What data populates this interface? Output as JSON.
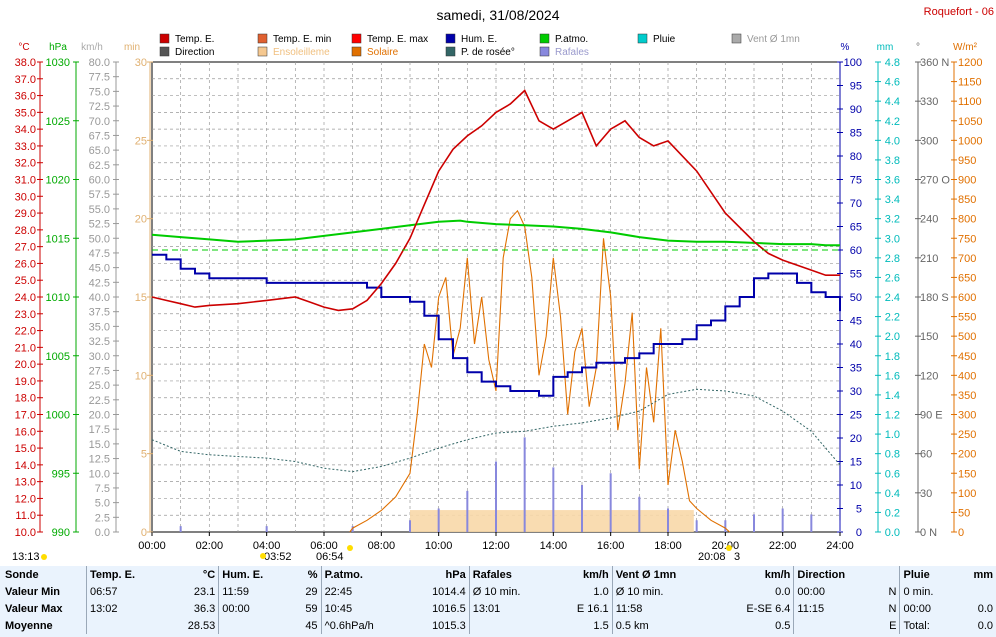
{
  "title": "samedi, 31/08/2024",
  "station": "Roquefort - 06",
  "legend": [
    {
      "label": "Temp. E.",
      "color": "#cc0000"
    },
    {
      "label": "Temp. E. min",
      "color": "#e06030"
    },
    {
      "label": "Temp. E. max",
      "color": "#ff0000"
    },
    {
      "label": "Hum. E.",
      "color": "#0000aa"
    },
    {
      "label": "P.atmo.",
      "color": "#00cc00"
    },
    {
      "label": "Pluie",
      "color": "#00cccc"
    },
    {
      "label": "Vent Ø 1mn",
      "color": "#aaaaaa"
    },
    {
      "label": "Direction",
      "color": "#555555"
    },
    {
      "label": "Ensoleilleme",
      "color": "#f5c890"
    },
    {
      "label": "Solaire",
      "color": "#e07000"
    },
    {
      "label": "P. de rosée°",
      "color": "#336666"
    },
    {
      "label": "Rafales",
      "color": "#8888dd"
    }
  ],
  "axis_units": {
    "temp": "°C",
    "pressure": "hPa",
    "wind": "km/h",
    "minutes": "min",
    "humidity": "%",
    "rain": "mm",
    "direction": "°",
    "solar": "W/m²"
  },
  "axes": {
    "temp": [
      "38.0",
      "37.0",
      "36.0",
      "35.0",
      "34.0",
      "33.0",
      "32.0",
      "31.0",
      "30.0",
      "29.0",
      "28.0",
      "27.0",
      "26.0",
      "25.0",
      "24.0",
      "23.0",
      "22.0",
      "21.0",
      "20.0",
      "19.0",
      "18.0",
      "17.0",
      "16.0",
      "15.0",
      "14.0",
      "13.0",
      "12.0",
      "11.0",
      "10.0"
    ],
    "pressure": [
      "1030",
      "1025",
      "1020",
      "1015",
      "1010",
      "1005",
      "1000",
      "995",
      "990"
    ],
    "wind": [
      "80.0",
      "77.5",
      "75.0",
      "72.5",
      "70.0",
      "67.5",
      "65.0",
      "62.5",
      "60.0",
      "57.5",
      "55.0",
      "52.5",
      "50.0",
      "47.5",
      "45.0",
      "42.5",
      "40.0",
      "37.5",
      "35.0",
      "32.5",
      "30.0",
      "27.5",
      "25.0",
      "22.5",
      "20.0",
      "17.5",
      "15.0",
      "12.5",
      "10.0",
      "7.5",
      "5.0",
      "2.5",
      "0.0"
    ],
    "minutes": [
      "30",
      "25",
      "20",
      "15",
      "10",
      "5",
      "0"
    ],
    "humidity": [
      "100",
      "95",
      "90",
      "85",
      "80",
      "75",
      "70",
      "65",
      "60",
      "55",
      "50",
      "45",
      "40",
      "35",
      "30",
      "25",
      "20",
      "15",
      "10",
      "5",
      "0"
    ],
    "rain": [
      "4.8",
      "4.6",
      "4.4",
      "4.2",
      "4.0",
      "3.8",
      "3.6",
      "3.4",
      "3.2",
      "3.0",
      "2.8",
      "2.6",
      "2.4",
      "2.2",
      "2.0",
      "1.8",
      "1.6",
      "1.4",
      "1.2",
      "1.0",
      "0.8",
      "0.6",
      "0.4",
      "0.2",
      "0.0"
    ],
    "direction": [
      "360 N",
      "330",
      "300",
      "270 O",
      "240",
      "210",
      "180 S",
      "150",
      "120",
      "90 E",
      "60",
      "30",
      "0 N"
    ],
    "solar": [
      "1200",
      "1150",
      "1100",
      "1050",
      "1000",
      "950",
      "900",
      "850",
      "800",
      "750",
      "700",
      "650",
      "600",
      "550",
      "500",
      "450",
      "400",
      "350",
      "300",
      "250",
      "200",
      "150",
      "100",
      "50",
      "0"
    ],
    "time": [
      "00:00",
      "02:00",
      "04:00",
      "06:00",
      "08:00",
      "10:00",
      "12:00",
      "14:00",
      "16:00",
      "18:00",
      "20:00",
      "22:00",
      "24:00"
    ]
  },
  "sun_markers": {
    "start": "13:13",
    "sunrise": "06:54",
    "moon": "03:52",
    "sunset": "20:08",
    "sunset_suffix": "3"
  },
  "chart_data": {
    "type": "line",
    "title": "samedi, 31/08/2024",
    "x_unit": "hour of day",
    "xlim": [
      0,
      24
    ],
    "series": [
      {
        "name": "Temp. E.",
        "unit": "°C",
        "ylim": [
          10,
          38
        ],
        "x": [
          0,
          0.5,
          1,
          1.5,
          2,
          3,
          4,
          5,
          5.5,
          6,
          6.5,
          7,
          7.5,
          8,
          8.5,
          9,
          9.5,
          10,
          10.5,
          11,
          11.5,
          12,
          12.5,
          13,
          13.5,
          14,
          14.5,
          15,
          15.5,
          16,
          16.5,
          17,
          17.5,
          18,
          19,
          20,
          21,
          21.5,
          22,
          22.5,
          23,
          23.5,
          24
        ],
        "y": [
          24,
          23.8,
          23.6,
          23.4,
          23.5,
          23.6,
          23.8,
          24,
          23.7,
          23.4,
          23.2,
          23.3,
          23.8,
          24.8,
          26,
          27.5,
          29.5,
          31.5,
          32.8,
          33.6,
          34.2,
          35,
          35.5,
          36.3,
          34.5,
          34,
          34.5,
          35,
          33,
          34,
          34.5,
          33.5,
          33,
          33.3,
          31.5,
          29,
          27.3,
          26.6,
          26.2,
          25.9,
          25.6,
          25.3,
          25.3
        ]
      },
      {
        "name": "Hum. E.",
        "unit": "%",
        "ylim": [
          0,
          100
        ],
        "x": [
          0,
          0.5,
          1,
          1.5,
          2,
          3,
          4,
          5,
          6,
          6.5,
          7,
          7.5,
          8,
          8.5,
          9,
          9.5,
          10,
          10.5,
          11,
          11.5,
          12,
          12.5,
          13,
          13.5,
          14,
          14.5,
          15,
          15.5,
          16,
          16.5,
          17,
          17.5,
          18,
          18.5,
          19,
          19.5,
          20,
          20.5,
          21,
          21.5,
          22,
          22.5,
          23,
          23.5,
          24
        ],
        "y": [
          59,
          58,
          56,
          55,
          54,
          54,
          53,
          53,
          53,
          53,
          53,
          52,
          50,
          50,
          49,
          46,
          41,
          37,
          34,
          32,
          31,
          30,
          30,
          29,
          33,
          34,
          35,
          36,
          36,
          37,
          38,
          40,
          40,
          41,
          44,
          45,
          48,
          50,
          54,
          55,
          55,
          53,
          51,
          50,
          47
        ]
      },
      {
        "name": "P.atmo.",
        "unit": "hPa",
        "ylim": [
          990,
          1030
        ],
        "x": [
          0,
          1,
          2,
          3,
          4,
          5,
          6,
          7,
          8,
          9,
          10,
          10.75,
          11,
          12,
          13,
          14,
          15,
          16,
          17,
          18,
          19,
          20,
          21,
          22,
          23,
          23.5,
          24
        ],
        "y": [
          1015.3,
          1015.1,
          1014.9,
          1014.7,
          1014.8,
          1014.9,
          1015.2,
          1015.5,
          1015.8,
          1016.1,
          1016.4,
          1016.5,
          1016.4,
          1016.2,
          1016.1,
          1016,
          1015.8,
          1015.5,
          1015.1,
          1014.8,
          1014.7,
          1014.7,
          1014.6,
          1014.5,
          1014.5,
          1014.4,
          1014.4
        ]
      },
      {
        "name": "Solaire",
        "unit": "W/m²",
        "ylim": [
          0,
          1200
        ],
        "x": [
          6.9,
          7,
          7.5,
          8,
          8.5,
          9,
          9.25,
          9.5,
          9.75,
          10,
          10.25,
          10.5,
          10.75,
          11,
          11.25,
          11.5,
          11.75,
          12,
          12.25,
          12.5,
          12.75,
          13,
          13.25,
          13.5,
          13.75,
          14,
          14.25,
          14.5,
          14.75,
          15,
          15.25,
          15.5,
          15.75,
          16,
          16.25,
          16.5,
          16.75,
          17,
          17.25,
          17.5,
          17.75,
          18,
          18.25,
          18.5,
          18.75,
          19,
          19.5,
          20,
          20.15
        ],
        "y": [
          0,
          10,
          30,
          55,
          90,
          150,
          300,
          480,
          420,
          600,
          650,
          450,
          520,
          700,
          480,
          600,
          440,
          360,
          700,
          800,
          820,
          780,
          650,
          400,
          500,
          700,
          550,
          300,
          460,
          520,
          320,
          420,
          750,
          600,
          260,
          380,
          560,
          160,
          420,
          280,
          520,
          120,
          260,
          180,
          80,
          60,
          30,
          10,
          0
        ]
      },
      {
        "name": "Rafales",
        "unit": "km/h",
        "ylim": [
          0,
          80
        ],
        "x": [
          0,
          1,
          2,
          3,
          4,
          5,
          6,
          7,
          8,
          9,
          10,
          11,
          12,
          13,
          14,
          15,
          16,
          17,
          18,
          19,
          20,
          21,
          22,
          23,
          24
        ],
        "y": [
          0,
          1,
          0,
          0,
          1,
          0,
          0,
          1,
          0,
          2,
          4,
          7,
          12,
          16.1,
          11,
          8,
          10,
          6,
          4,
          2,
          2,
          3,
          4,
          3,
          2
        ]
      },
      {
        "name": "P. de rosée°",
        "unit": "°C",
        "ylim": [
          10,
          38
        ],
        "x": [
          0,
          1,
          2,
          3,
          4,
          5,
          6,
          7,
          8,
          9,
          10,
          11,
          12,
          13,
          14,
          15,
          16,
          17,
          18,
          19,
          20,
          21,
          22,
          23,
          24
        ],
        "y": [
          15.5,
          14.8,
          14.6,
          14.5,
          14.4,
          14.2,
          13.8,
          13.6,
          13.9,
          14.4,
          15,
          15.5,
          15.9,
          16,
          16.3,
          16.5,
          16.8,
          17.2,
          18.2,
          18.5,
          18.4,
          18.1,
          17.2,
          16,
          14
        ]
      }
    ],
    "grid": true
  },
  "summary": {
    "headers": [
      {
        "name": "Sonde",
        "unit": ""
      },
      {
        "name": "Temp. E.",
        "unit": "°C"
      },
      {
        "name": "Hum. E.",
        "unit": "%"
      },
      {
        "name": "P.atmo.",
        "unit": "hPa"
      },
      {
        "name": "Rafales",
        "unit": "km/h"
      },
      {
        "name": "Vent Ø 1mn",
        "unit": "km/h"
      },
      {
        "name": "Direction",
        "unit": ""
      },
      {
        "name": "Pluie",
        "unit": "mm"
      }
    ],
    "rows": [
      {
        "label": "Valeur Min",
        "cells": [
          [
            "06:57",
            "23.1"
          ],
          [
            "11:59",
            "29"
          ],
          [
            "22:45",
            "1014.4"
          ],
          [
            "Ø 10 min.",
            "1.0"
          ],
          [
            "Ø 10 min.",
            "0.0"
          ],
          [
            "00:00",
            "N"
          ],
          [
            "0 min.",
            ""
          ]
        ]
      },
      {
        "label": "Valeur Max",
        "cells": [
          [
            "13:02",
            "36.3"
          ],
          [
            "00:00",
            "59"
          ],
          [
            "10:45",
            "1016.5"
          ],
          [
            "13:01",
            "E 16.1"
          ],
          [
            "11:58",
            "E-SE 6.4"
          ],
          [
            "11:15",
            "N"
          ],
          [
            "00:00",
            "0.0"
          ]
        ]
      },
      {
        "label": "Moyenne",
        "cells": [
          [
            "",
            "28.53"
          ],
          [
            "",
            "45"
          ],
          [
            "^0.6hPa/h",
            "1015.3"
          ],
          [
            "",
            "1.5"
          ],
          [
            "0.5 km",
            "0.5"
          ],
          [
            "",
            "E"
          ],
          [
            "Total:",
            "0.0"
          ]
        ]
      }
    ]
  }
}
